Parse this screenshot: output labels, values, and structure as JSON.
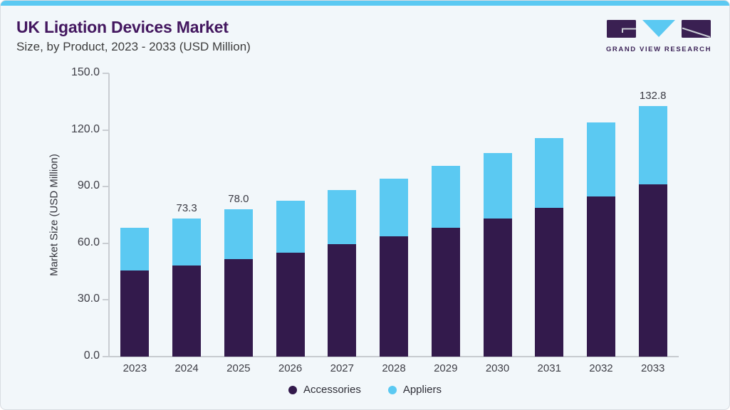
{
  "header": {
    "title": "UK Ligation Devices Market",
    "subtitle": "Size, by Product, 2023 - 2033 (USD Million)",
    "brand": "GRAND VIEW RESEARCH"
  },
  "colors": {
    "accent_blue": "#5BC9F2",
    "accessories_purple": "#331A4C",
    "title_purple": "#43175F",
    "card_background": "#F2F7FA",
    "card_border": "#D8DDE2",
    "axis_line": "#C9CDD2"
  },
  "chart_data": {
    "type": "bar",
    "subtype": "stacked-vertical",
    "title": "UK Ligation Devices Market",
    "subtitle": "Size, by Product, 2023 - 2033 (USD Million)",
    "xlabel": "",
    "ylabel": "Market Size (USD Million)",
    "ylim": [
      0,
      150
    ],
    "yticks": [
      0,
      30,
      60,
      90,
      120,
      150
    ],
    "ytick_labels": [
      "0.0",
      "30.0",
      "60.0",
      "90.0",
      "120.0",
      "150.0"
    ],
    "grid": false,
    "legend_position": "bottom",
    "categories": [
      "2023",
      "2024",
      "2025",
      "2026",
      "2027",
      "2028",
      "2029",
      "2030",
      "2031",
      "2032",
      "2033"
    ],
    "series": [
      {
        "name": "Accessories",
        "color": "#331A4C",
        "values": [
          45.6,
          48.4,
          51.8,
          55.1,
          59.5,
          63.8,
          68.3,
          73.2,
          78.9,
          84.8,
          91.1
        ]
      },
      {
        "name": "Appliers",
        "color": "#5BC9F2",
        "values": [
          22.7,
          24.9,
          26.2,
          27.5,
          28.7,
          30.5,
          32.7,
          34.6,
          36.7,
          39.2,
          41.7
        ]
      }
    ],
    "totals": [
      68.3,
      73.3,
      78.0,
      82.6,
      88.2,
      94.3,
      101.0,
      107.8,
      115.6,
      124.0,
      132.8
    ],
    "total_labels_shown": {
      "2024": "73.3",
      "2025": "78.0",
      "2033": "132.8"
    }
  }
}
